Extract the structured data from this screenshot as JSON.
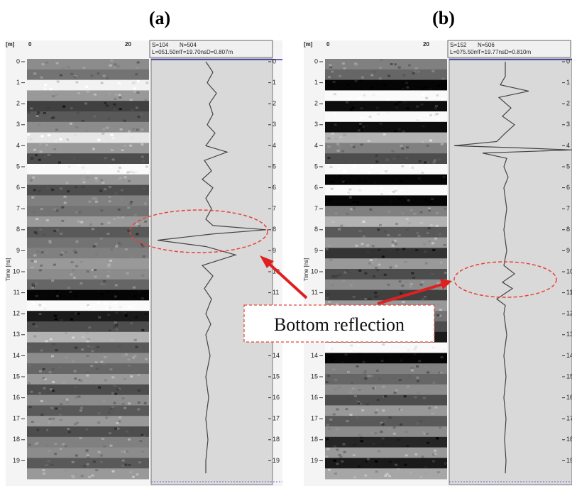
{
  "labels": {
    "a": "(a)",
    "b": "(b)"
  },
  "panels": [
    {
      "header": {
        "s": "S=104",
        "n": "N=504",
        "l": "L=051.50m",
        "t": "T=19.70nsD=0.807m"
      },
      "unit": "[m]",
      "x_start": "0",
      "x_end": "20",
      "y_axis_title": "Time [ns]",
      "time_ticks": [
        "0",
        "1",
        "2",
        "3",
        "4",
        "5",
        "6",
        "7",
        "8",
        "9",
        "10",
        "11",
        "12",
        "13",
        "14",
        "15",
        "16",
        "17",
        "18",
        "19"
      ]
    },
    {
      "header": {
        "s": "S=152",
        "n": "N=506",
        "l": "L=075.50m",
        "t": "T=19.77nsD=0.810m"
      },
      "unit": "[m]",
      "x_start": "0",
      "x_end": "20",
      "y_axis_title": "Time [ns]",
      "time_ticks": [
        "0",
        "1",
        "2",
        "3",
        "4",
        "5",
        "6",
        "7",
        "8",
        "9",
        "10",
        "11",
        "12",
        "13",
        "14",
        "15",
        "16",
        "17",
        "18",
        "19"
      ]
    }
  ],
  "annotation": "Bottom reflection"
}
